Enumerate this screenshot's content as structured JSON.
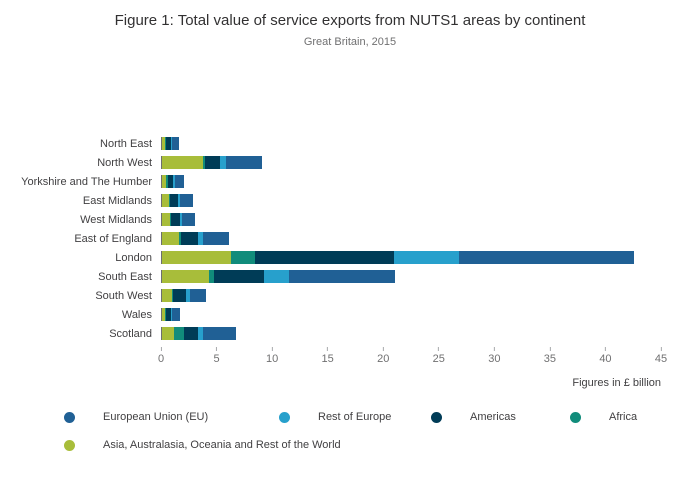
{
  "header": {
    "title": "Figure 1: Total value of service exports from NUTS1 areas by continent",
    "subtitle": "Great Britain, 2015"
  },
  "chart_data": {
    "type": "bar",
    "orientation": "horizontal-stacked",
    "title": "Figure 1: Total value of service exports from NUTS1 areas by continent",
    "subtitle": "Great Britain, 2015",
    "xlabel": "Figures in £ billion",
    "xlim": [
      0,
      45
    ],
    "xticks": [
      0,
      5,
      10,
      15,
      20,
      25,
      30,
      35,
      40,
      45
    ],
    "grid": false,
    "categories": [
      "North East",
      "North West",
      "Yorkshire and The Humber",
      "East Midlands",
      "West Midlands",
      "East of England",
      "London",
      "South East",
      "South West",
      "Wales",
      "Scotland"
    ],
    "series": [
      {
        "name": "European Union (EU)",
        "color": "#206095",
        "values": [
          0.6,
          3.2,
          0.8,
          1.2,
          1.2,
          2.3,
          15.8,
          9.6,
          1.5,
          0.7,
          3.0
        ]
      },
      {
        "name": "Rest of Europe",
        "color": "#27A0CC",
        "values": [
          0.1,
          0.6,
          0.2,
          0.2,
          0.2,
          0.5,
          5.8,
          2.2,
          0.3,
          0.1,
          0.5
        ]
      },
      {
        "name": "Americas",
        "color": "#003C57",
        "values": [
          0.4,
          1.3,
          0.5,
          0.7,
          0.8,
          1.5,
          12.5,
          4.5,
          1.2,
          0.4,
          1.2
        ]
      },
      {
        "name": "Africa",
        "color": "#118C7B",
        "values": [
          0.1,
          0.2,
          0.1,
          0.1,
          0.1,
          0.2,
          2.2,
          0.5,
          0.1,
          0.1,
          0.9
        ]
      },
      {
        "name": "Asia, Australasia, Oceania and Rest of the World",
        "color": "#A8BD3A",
        "values": [
          0.3,
          3.7,
          0.4,
          0.6,
          0.7,
          1.5,
          6.2,
          4.2,
          0.9,
          0.3,
          1.1
        ]
      }
    ],
    "stack_order": [
      4,
      3,
      2,
      1,
      0
    ],
    "legend_rows": [
      [
        "European Union (EU)",
        "Rest of Europe",
        "Americas",
        "Africa"
      ],
      [
        "Asia, Australasia, Oceania and Rest of the World"
      ]
    ],
    "legend_position": "bottom"
  }
}
